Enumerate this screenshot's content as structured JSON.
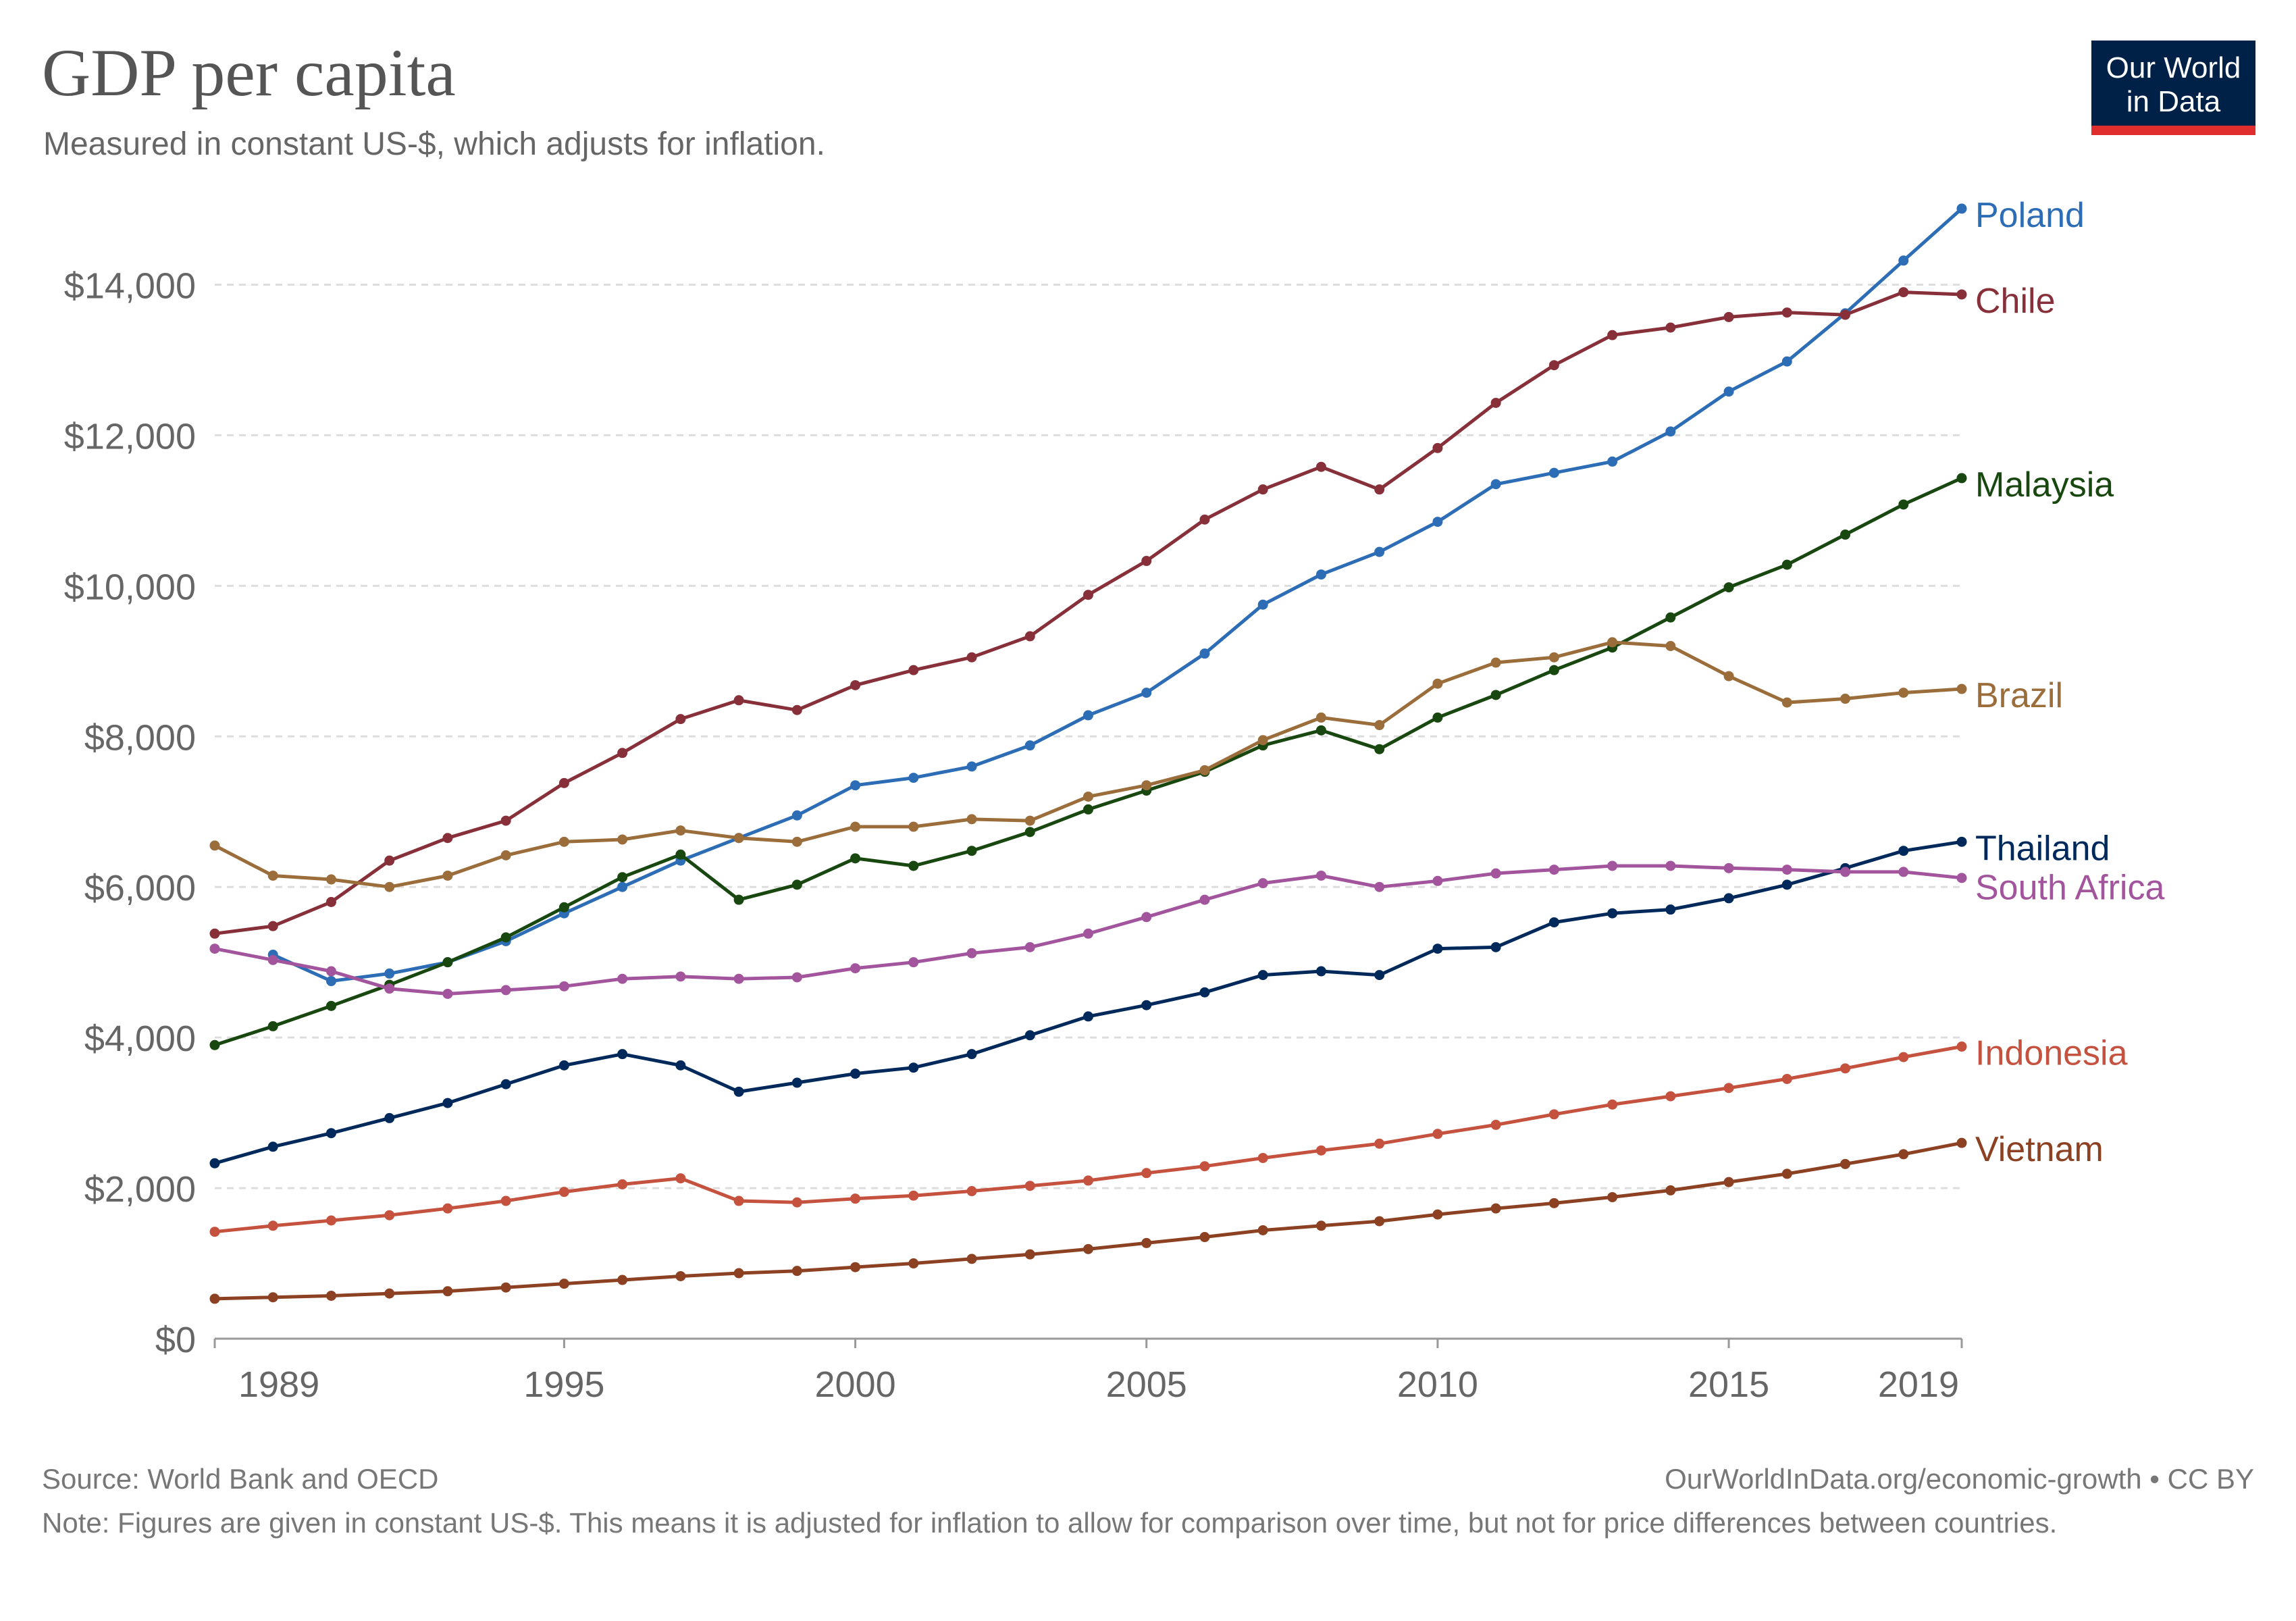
{
  "title": "GDP per capita",
  "subtitle": "Measured in constant US-$, which adjusts for inflation.",
  "logo": {
    "line1": "Our World",
    "line2": "in Data"
  },
  "footer": {
    "source": "Source: World Bank and OECD",
    "url": "OurWorldInData.org/economic-growth • CC BY",
    "note": "Note: Figures are given in constant US-$. This means it is adjusted for inflation to allow for comparison over time, but not for price differences between countries."
  },
  "chart_data": {
    "type": "line",
    "title": "GDP per capita",
    "subtitle": "Measured in constant US-$, which adjusts for inflation.",
    "xlim": [
      1989,
      2019
    ],
    "ylim": [
      0,
      15000
    ],
    "x_ticks": [
      1989,
      1995,
      2000,
      2005,
      2010,
      2015,
      2019
    ],
    "x_tick_labels": [
      "1989",
      "1995",
      "2000",
      "2005",
      "2010",
      "2015",
      "2019"
    ],
    "y_ticks": [
      0,
      2000,
      4000,
      6000,
      8000,
      10000,
      12000,
      14000
    ],
    "y_tick_labels": [
      "$0",
      "$2,000",
      "$4,000",
      "$6,000",
      "$8,000",
      "$10,000",
      "$12,000",
      "$14,000"
    ],
    "grid": "horizontal dashed",
    "legend": "end-of-line labels",
    "x": [
      1989,
      1990,
      1991,
      1992,
      1993,
      1994,
      1995,
      1996,
      1997,
      1998,
      1999,
      2000,
      2001,
      2002,
      2003,
      2004,
      2005,
      2006,
      2007,
      2008,
      2009,
      2010,
      2011,
      2012,
      2013,
      2014,
      2015,
      2016,
      2017,
      2018,
      2019
    ],
    "series": [
      {
        "name": "Poland",
        "color": "#2c6db5",
        "values": [
          null,
          5100,
          4750,
          4850,
          5000,
          5280,
          5650,
          6000,
          6350,
          6650,
          6950,
          7350,
          7450,
          7600,
          7880,
          8280,
          8580,
          9100,
          9750,
          10150,
          10450,
          10850,
          11350,
          11500,
          11650,
          12050,
          12580,
          12980,
          13620,
          14320,
          15010
        ]
      },
      {
        "name": "Chile",
        "color": "#883039",
        "values": [
          5380,
          5480,
          5800,
          6350,
          6650,
          6880,
          7380,
          7780,
          8230,
          8480,
          8350,
          8680,
          8880,
          9050,
          9330,
          9880,
          10330,
          10880,
          11280,
          11580,
          11280,
          11830,
          12430,
          12930,
          13330,
          13430,
          13570,
          13630,
          13600,
          13900,
          13870
        ]
      },
      {
        "name": "Malaysia",
        "color": "#18470f",
        "values": [
          3900,
          4150,
          4420,
          4700,
          5000,
          5330,
          5730,
          6130,
          6430,
          5830,
          6030,
          6380,
          6280,
          6480,
          6730,
          7030,
          7280,
          7530,
          7880,
          8080,
          7830,
          8250,
          8550,
          8880,
          9180,
          9580,
          9980,
          10280,
          10680,
          11080,
          11430
        ]
      },
      {
        "name": "Brazil",
        "color": "#9a6d3b",
        "values": [
          6550,
          6150,
          6100,
          6000,
          6150,
          6420,
          6600,
          6630,
          6750,
          6650,
          6600,
          6800,
          6800,
          6900,
          6880,
          7200,
          7350,
          7550,
          7950,
          8250,
          8150,
          8700,
          8980,
          9050,
          9250,
          9200,
          8800,
          8450,
          8500,
          8580,
          8630
        ]
      },
      {
        "name": "Thailand",
        "color": "#00295b",
        "values": [
          2330,
          2550,
          2730,
          2930,
          3130,
          3380,
          3630,
          3780,
          3630,
          3280,
          3400,
          3520,
          3600,
          3780,
          4030,
          4280,
          4430,
          4600,
          4830,
          4880,
          4830,
          5180,
          5200,
          5530,
          5650,
          5700,
          5850,
          6030,
          6250,
          6480,
          6600
        ]
      },
      {
        "name": "South Africa",
        "color": "#a2559c",
        "values": [
          5180,
          5030,
          4880,
          4650,
          4580,
          4630,
          4680,
          4780,
          4810,
          4780,
          4800,
          4920,
          5000,
          5120,
          5200,
          5380,
          5600,
          5830,
          6050,
          6150,
          6000,
          6080,
          6180,
          6230,
          6280,
          6280,
          6250,
          6230,
          6200,
          6200,
          6120
        ]
      },
      {
        "name": "Indonesia",
        "color": "#c4523e",
        "values": [
          1420,
          1500,
          1570,
          1640,
          1730,
          1830,
          1950,
          2050,
          2130,
          1830,
          1810,
          1860,
          1900,
          1960,
          2030,
          2100,
          2200,
          2290,
          2400,
          2500,
          2590,
          2720,
          2840,
          2980,
          3110,
          3220,
          3330,
          3450,
          3590,
          3740,
          3880
        ]
      },
      {
        "name": "Vietnam",
        "color": "#8c4122",
        "values": [
          530,
          550,
          570,
          600,
          630,
          680,
          730,
          780,
          830,
          870,
          900,
          950,
          1000,
          1060,
          1120,
          1190,
          1270,
          1350,
          1440,
          1500,
          1560,
          1650,
          1730,
          1800,
          1880,
          1970,
          2080,
          2190,
          2320,
          2450,
          2600
        ]
      }
    ]
  }
}
